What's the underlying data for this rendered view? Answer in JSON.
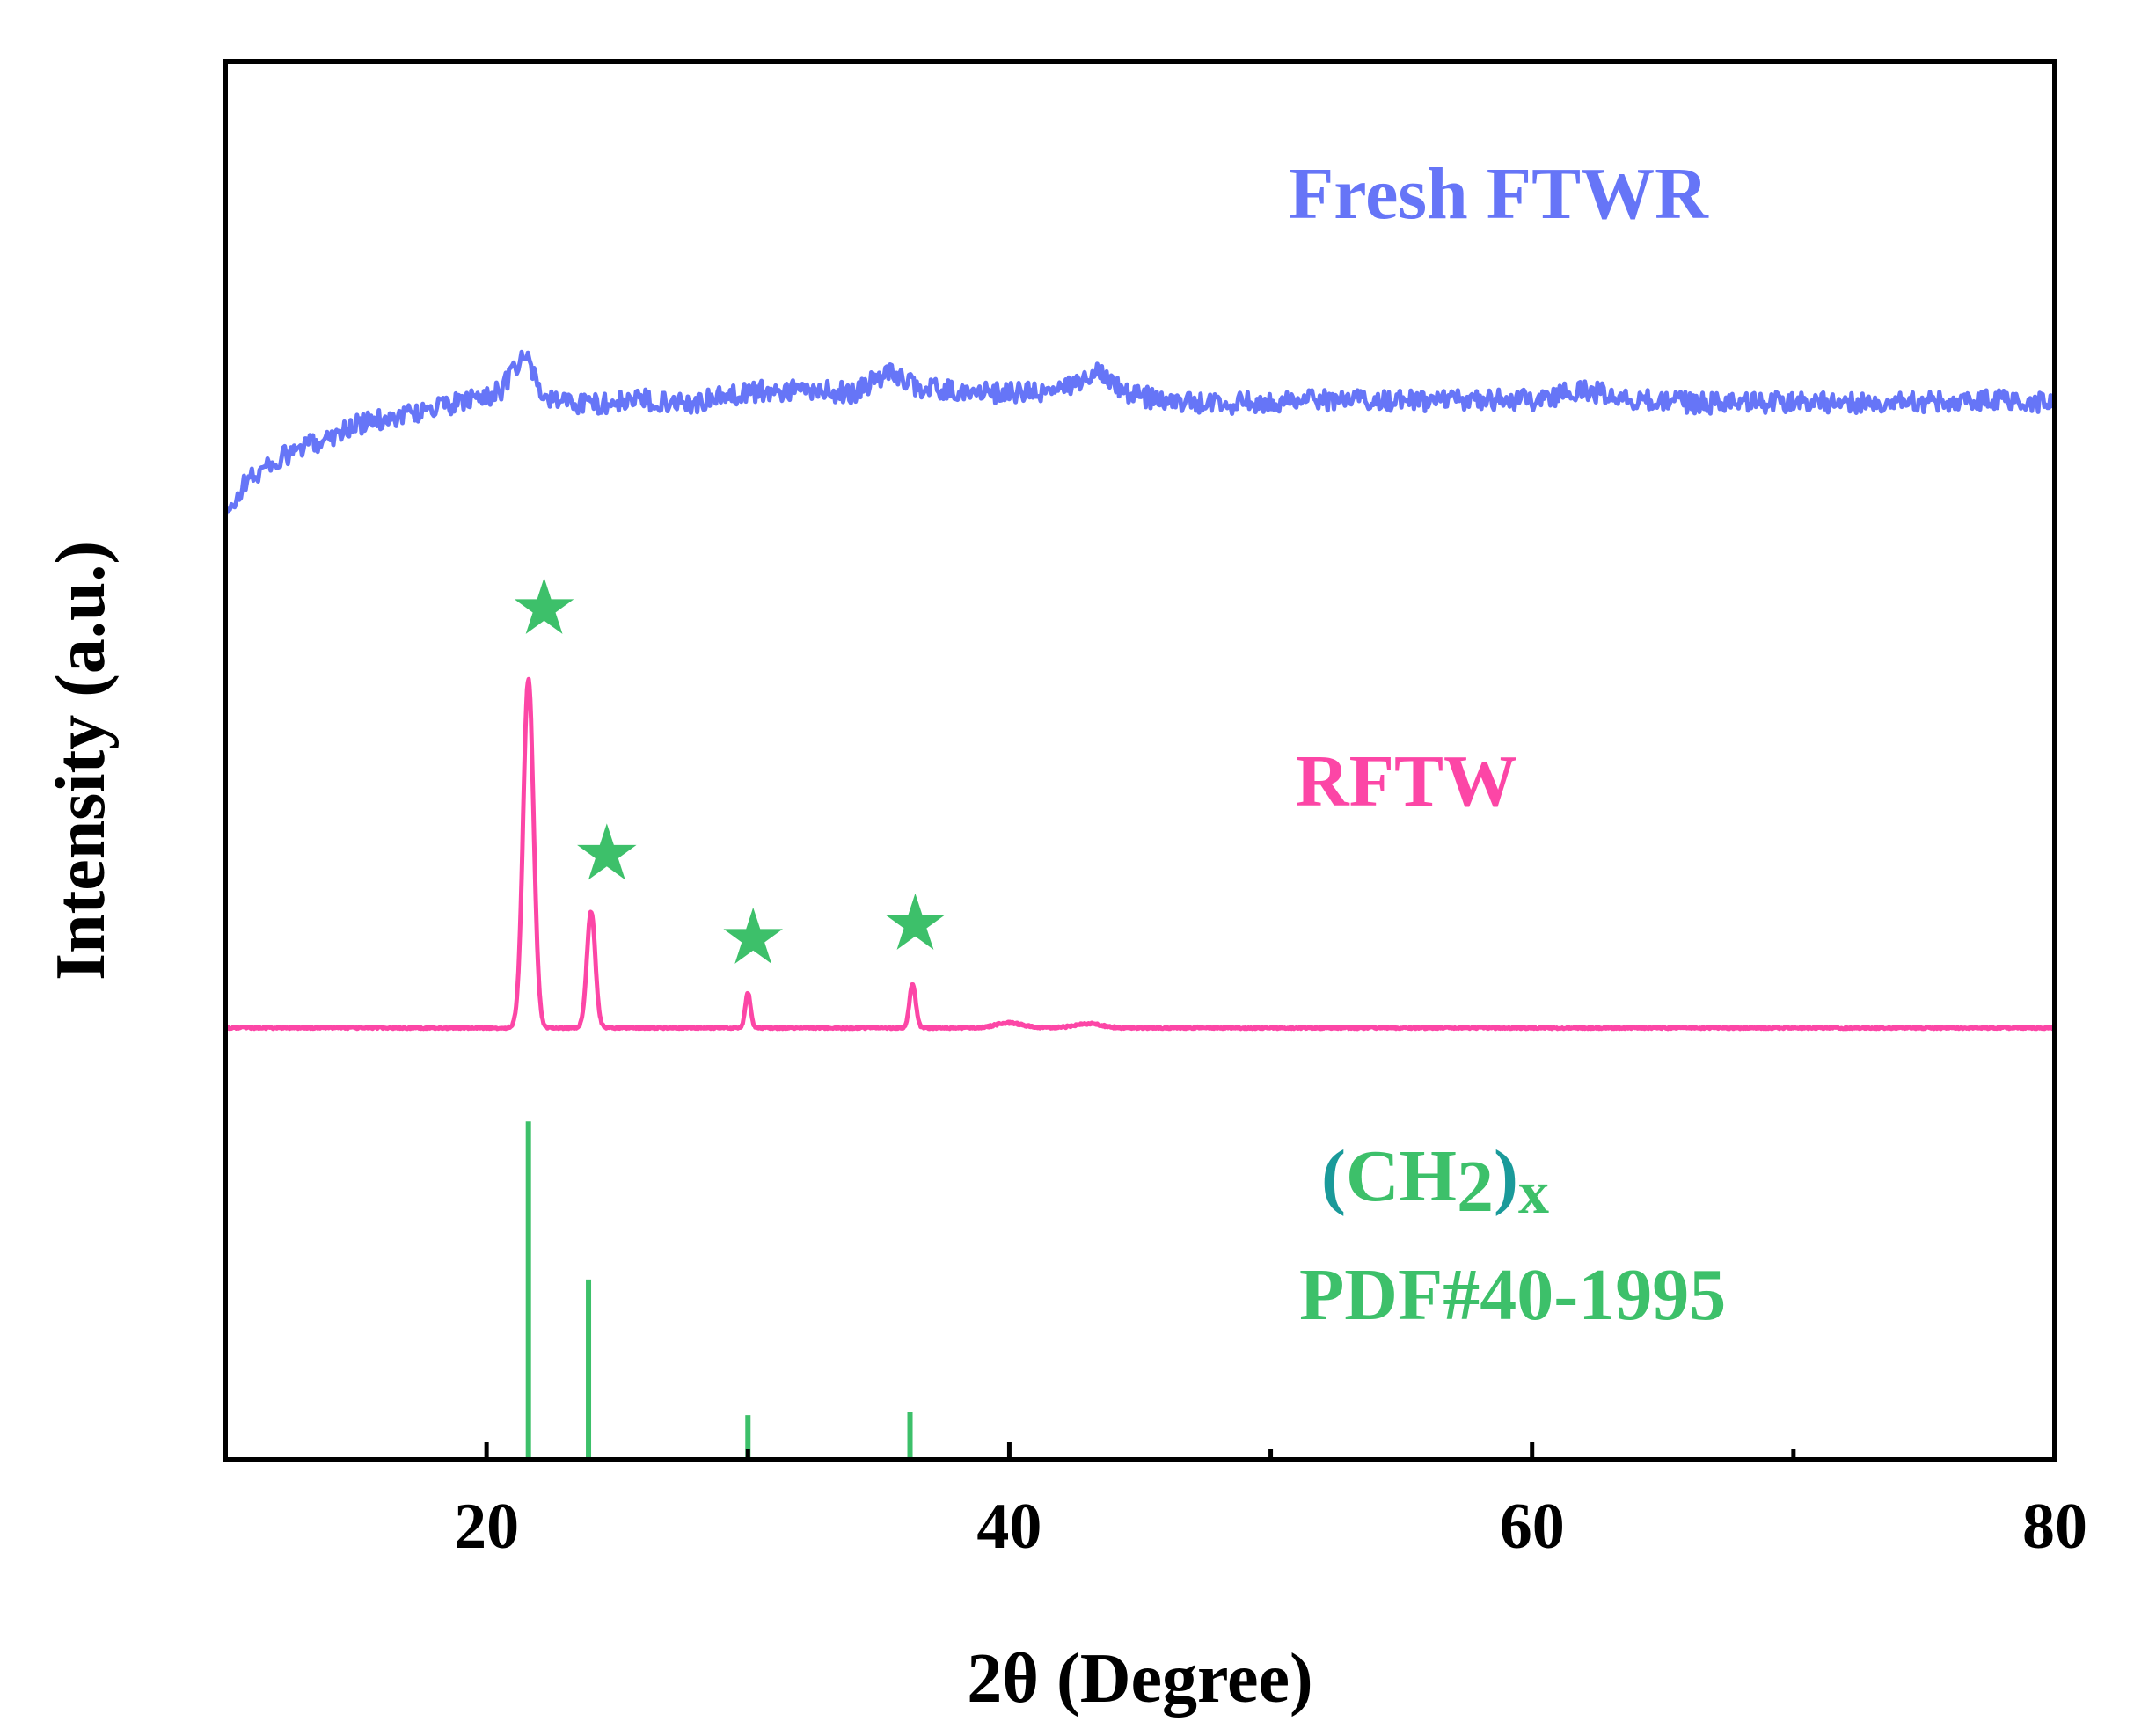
{
  "chart_data": {
    "type": "line",
    "title": "",
    "xlabel": "2θ (Degree)",
    "ylabel": "Intensity (a.u.)",
    "xlim": [
      10,
      80
    ],
    "ylim": [
      0,
      100
    ],
    "x_major_ticks": [
      20,
      40,
      60,
      80
    ],
    "x_minor_ticks": [
      30,
      50,
      70
    ],
    "x_tick_labels": [
      "20",
      "40",
      "60",
      "80"
    ],
    "grid": false,
    "series": [
      {
        "name": "Fresh FTWR",
        "label": "Fresh FTWR",
        "color": "#6675f7",
        "x": [
          10,
          10.8,
          12,
          13.5,
          15,
          17,
          19,
          20.5,
          21.5,
          22.2,
          24,
          26,
          28,
          30,
          32,
          34,
          35.5,
          36.5,
          38,
          40,
          42,
          43.5,
          44.5,
          46,
          48,
          50,
          52,
          54,
          56,
          58,
          60,
          62,
          64,
          66,
          68,
          70,
          72,
          74,
          76,
          78,
          80
        ],
        "offset": [
          67.3,
          70.0,
          71.5,
          72.8,
          74.0,
          74.8,
          75.6,
          76.4,
          79.0,
          75.9,
          75.5,
          75.8,
          75.6,
          76.4,
          76.5,
          76.3,
          77.8,
          76.7,
          76.4,
          76.3,
          76.4,
          78.0,
          76.3,
          75.7,
          75.5,
          75.7,
          75.8,
          75.8,
          75.7,
          75.8,
          75.8,
          76.5,
          75.8,
          75.6,
          75.5,
          75.7,
          75.6,
          75.6,
          75.7,
          75.8,
          75.6
        ]
      },
      {
        "name": "RFTW",
        "label": "RFTW",
        "color": "#fc46a6",
        "baseline": 30.9,
        "peaks": [
          {
            "x": 21.6,
            "height": 24.9,
            "width": 0.2
          },
          {
            "x": 24.0,
            "height": 8.3,
            "width": 0.16
          },
          {
            "x": 30.0,
            "height": 2.5,
            "width": 0.1
          },
          {
            "x": 36.3,
            "height": 3.1,
            "width": 0.12
          },
          {
            "x": 40.0,
            "height": 0.35,
            "width": 0.5
          },
          {
            "x": 43.0,
            "height": 0.3,
            "width": 0.5
          }
        ]
      },
      {
        "name": "PDF#40-1995",
        "label": "PDF#40-1995",
        "compound": "(CH2)x",
        "color": "#3dc06a",
        "type": "stick",
        "x": [
          21.6,
          23.9,
          30.0,
          36.2
        ],
        "height": [
          24.2,
          12.9,
          3.2,
          3.4
        ]
      }
    ],
    "annotations": [
      {
        "symbol": "★",
        "x": 22.2,
        "y": 60.6,
        "color": "#3dc06a"
      },
      {
        "symbol": "★",
        "x": 24.6,
        "y": 43.0,
        "color": "#3dc06a"
      },
      {
        "symbol": "★",
        "x": 30.2,
        "y": 37.0,
        "color": "#3dc06a"
      },
      {
        "symbol": "★",
        "x": 36.4,
        "y": 38.0,
        "color": "#3dc06a"
      }
    ],
    "labels": {
      "fresh": "Fresh FTWR",
      "rftw": "RFTW",
      "compound_open": "(",
      "compound_ch": "CH",
      "compound_sub": "2",
      "compound_close": ")",
      "compound_x": "x",
      "pdf": "PDF#40-1995"
    },
    "colors": {
      "axis": "#000000",
      "paren": "#1a9a9a"
    }
  }
}
